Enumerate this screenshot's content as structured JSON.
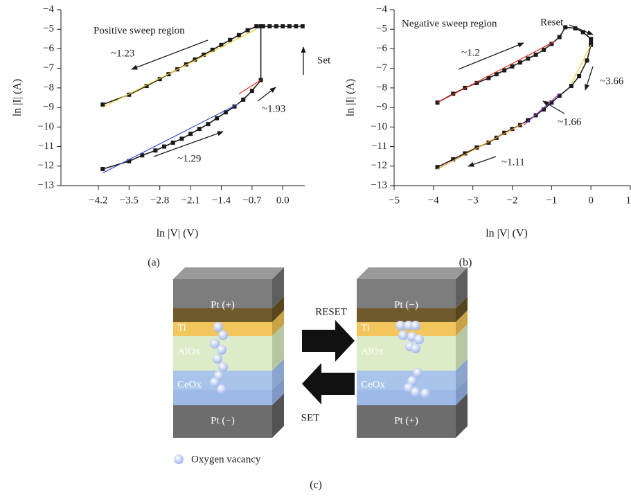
{
  "chart_data": [
    {
      "type": "line",
      "caption": "(a)",
      "x_label": "ln |V| (V)",
      "y_label": "ln |I| (A)",
      "xlim": [
        -5.05,
        0.5
      ],
      "ylim": [
        -13,
        -4
      ],
      "xticks": [
        {
          "value": -4.2,
          "label": "−4.2"
        },
        {
          "value": -3.5,
          "label": "−3.5"
        },
        {
          "value": -2.8,
          "label": "−2.8"
        },
        {
          "value": -2.1,
          "label": "−2.1"
        },
        {
          "value": -1.4,
          "label": "−1.4"
        },
        {
          "value": -0.7,
          "label": "−0.7"
        },
        {
          "value": 0,
          "label": "0.0"
        }
      ],
      "yticks": [
        {
          "value": -4,
          "label": "−4"
        },
        {
          "value": -5,
          "label": "−5"
        },
        {
          "value": -6,
          "label": "−6"
        },
        {
          "value": -7,
          "label": "−7"
        },
        {
          "value": -8,
          "label": "−8"
        },
        {
          "value": -9,
          "label": "−9"
        },
        {
          "value": -10,
          "label": "−10"
        },
        {
          "value": -11,
          "label": "−11"
        },
        {
          "value": -12,
          "label": "−12"
        },
        {
          "value": -13,
          "label": "−13"
        }
      ],
      "annotations": [
        "Positive sweep region",
        "~1.23",
        "Set",
        "~1.93",
        "~1.29"
      ],
      "series": [
        {
          "color": "#1a1a1a",
          "markers": true,
          "x": [
            -4.1,
            -3.5,
            -3.2,
            -2.9,
            -2.7,
            -2.5,
            -2.3,
            -2.1,
            -1.9,
            -1.7,
            -1.5,
            -1.3,
            -1.1,
            -0.9,
            -0.7,
            -0.5,
            -0.5
          ],
          "values": [
            -12.15,
            -11.75,
            -11.45,
            -11.2,
            -11.0,
            -10.8,
            -10.6,
            -10.35,
            -10.1,
            -9.85,
            -9.55,
            -9.25,
            -8.95,
            -8.6,
            -8.15,
            -7.6,
            -4.85
          ]
        },
        {
          "color": "#1a1a1a",
          "markers": true,
          "x": [
            0.45,
            0.3,
            0.15,
            0.0,
            -0.15,
            -0.3,
            -0.45,
            -0.6,
            -0.8,
            -1.0,
            -1.2,
            -1.4,
            -1.6,
            -1.8,
            -2.0,
            -2.2,
            -2.4,
            -2.6,
            -2.8,
            -3.1,
            -3.5,
            -4.1
          ],
          "values": [
            -4.85,
            -4.85,
            -4.85,
            -4.85,
            -4.85,
            -4.85,
            -4.85,
            -4.85,
            -5.05,
            -5.3,
            -5.55,
            -5.8,
            -6.05,
            -6.3,
            -6.55,
            -6.8,
            -7.05,
            -7.3,
            -7.55,
            -7.9,
            -8.35,
            -8.85
          ]
        },
        {
          "color": "#f2d22e",
          "markers": false,
          "x": [
            -4.1,
            -0.6
          ],
          "values": [
            -9.0,
            -5.0
          ]
        },
        {
          "color": "#3a4fd0",
          "markers": false,
          "x": [
            -4.1,
            -1.0
          ],
          "values": [
            -12.35,
            -8.8
          ]
        },
        {
          "color": "#e0301e",
          "markers": false,
          "x": [
            -1.0,
            -0.5
          ],
          "values": [
            -8.3,
            -7.6
          ]
        }
      ]
    },
    {
      "type": "line",
      "caption": "(b)",
      "x_label": "ln |V| (V)",
      "y_label": "ln |I| (A)",
      "xlim": [
        -5,
        1
      ],
      "ylim": [
        -13,
        -4
      ],
      "xticks": [
        {
          "value": -5,
          "label": "−5"
        },
        {
          "value": -4,
          "label": "−4"
        },
        {
          "value": -3,
          "label": "−3"
        },
        {
          "value": -2,
          "label": "−2"
        },
        {
          "value": -1,
          "label": "−1"
        },
        0,
        1
      ],
      "yticks": [
        {
          "value": -4,
          "label": "−4"
        },
        {
          "value": -5,
          "label": "−5"
        },
        {
          "value": -6,
          "label": "−6"
        },
        {
          "value": -7,
          "label": "−7"
        },
        {
          "value": -8,
          "label": "−8"
        },
        {
          "value": -9,
          "label": "−9"
        },
        {
          "value": -10,
          "label": "−10"
        },
        {
          "value": -11,
          "label": "−11"
        },
        {
          "value": -12,
          "label": "−12"
        },
        {
          "value": -13,
          "label": "−13"
        }
      ],
      "annotations": [
        "Negative sweep region",
        "Reset",
        "~1.2",
        "~3.66",
        "~1.66",
        "~1.11"
      ],
      "series": [
        {
          "color": "#1a1a1a",
          "markers": true,
          "x": [
            -3.9,
            -3.5,
            -3.2,
            -2.9,
            -2.6,
            -2.4,
            -2.2,
            -2.0,
            -1.8,
            -1.6,
            -1.4,
            -1.2,
            -1.0,
            -0.8,
            -0.65,
            -0.4,
            -0.2,
            0.0,
            0.0
          ],
          "values": [
            -8.75,
            -8.3,
            -8.0,
            -7.75,
            -7.5,
            -7.3,
            -7.1,
            -6.9,
            -6.7,
            -6.5,
            -6.3,
            -6.05,
            -5.75,
            -5.4,
            -4.9,
            -4.95,
            -5.15,
            -5.5,
            -5.7
          ]
        },
        {
          "color": "#1a1a1a",
          "markers": true,
          "x": [
            0.0,
            -0.1,
            -0.3,
            -0.5,
            -0.8,
            -1.0,
            -1.2,
            -1.4,
            -1.6,
            -1.8,
            -2.0,
            -2.2,
            -2.4,
            -2.6,
            -2.9,
            -3.2,
            -3.5,
            -3.9
          ],
          "values": [
            -5.8,
            -6.6,
            -7.4,
            -7.9,
            -8.4,
            -8.75,
            -9.1,
            -9.4,
            -9.65,
            -9.9,
            -10.1,
            -10.3,
            -10.55,
            -10.8,
            -11.05,
            -11.35,
            -11.65,
            -12.05
          ]
        },
        {
          "color": "#e0301e",
          "markers": false,
          "x": [
            -3.9,
            -0.9
          ],
          "values": [
            -8.75,
            -5.6
          ]
        },
        {
          "color": "#f2d22e",
          "markers": false,
          "x": [
            0.0,
            -0.5
          ],
          "values": [
            -5.8,
            -7.8
          ]
        },
        {
          "color": "#9a2fc8",
          "markers": false,
          "x": [
            -0.8,
            -1.7
          ],
          "values": [
            -8.3,
            -9.9
          ]
        },
        {
          "color": "#f29a1e",
          "markers": false,
          "x": [
            -1.7,
            -3.9
          ],
          "values": [
            -9.8,
            -12.15
          ]
        }
      ]
    }
  ],
  "diagram": {
    "left": {
      "top": "Pt (+)",
      "ti": "Ti",
      "alox": "AlOx",
      "ceox": "CeOx",
      "bottom": "Pt (−)"
    },
    "right": {
      "top": "Pt (−)",
      "ti": "Ti",
      "alox": "AlOx",
      "ceox": "CeOx",
      "bottom": "Pt (+)"
    },
    "reset": "RESET",
    "set": "SET",
    "legend": "Oxygen vacancy",
    "caption": "(c)"
  }
}
